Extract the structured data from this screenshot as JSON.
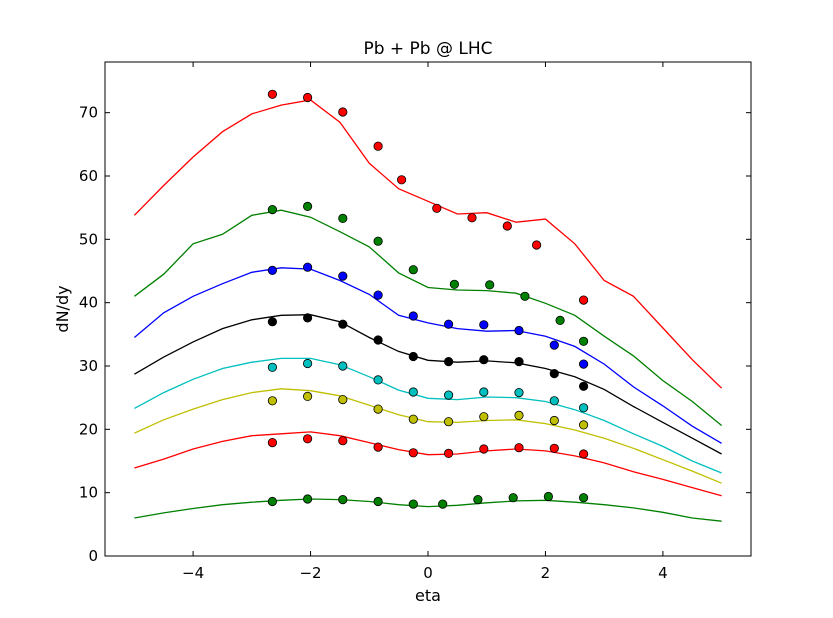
{
  "chart_data": {
    "type": "line",
    "title": "Pb + Pb @ LHC",
    "xlabel": "eta",
    "ylabel": "dN/dy",
    "xlim": [
      -5.5,
      5.5
    ],
    "ylim": [
      0,
      78
    ],
    "xticks": [
      -4,
      -2,
      0,
      2,
      4
    ],
    "xtick_labels": [
      "−4",
      "−2",
      "0",
      "2",
      "4"
    ],
    "yticks": [
      0,
      10,
      20,
      30,
      40,
      50,
      60,
      70
    ],
    "ytick_labels": [
      "0",
      "10",
      "20",
      "30",
      "40",
      "50",
      "60",
      "70"
    ],
    "grid": false,
    "legend": "none",
    "series": [
      {
        "color": "#ff0000",
        "line": {
          "x": [
            -5,
            -4.5,
            -4,
            -3.5,
            -3,
            -2.5,
            -2,
            -1.5,
            -1,
            -0.5,
            0,
            0.5,
            1,
            1.5,
            2,
            2.5,
            3,
            3.5,
            4,
            4.5,
            5
          ],
          "y": [
            53.8,
            58.5,
            63,
            67,
            69.8,
            71.2,
            72,
            68.5,
            62,
            58,
            56,
            54,
            54.2,
            52.7,
            53.2,
            49.3,
            43.5,
            41,
            36,
            31,
            26.5
          ]
        },
        "points": {
          "x": [
            -2.65,
            -2.05,
            -1.45,
            -0.85,
            -0.45,
            0.15,
            0.75,
            1.35,
            1.85,
            2.65
          ],
          "y": [
            72.9,
            72.4,
            70.1,
            64.7,
            59.4,
            54.9,
            53.4,
            52.1,
            49.1,
            40.4
          ]
        }
      },
      {
        "color": "#008000",
        "line": {
          "x": [
            -5,
            -4.5,
            -4,
            -3.5,
            -3,
            -2.5,
            -2,
            -1.5,
            -1,
            -0.5,
            0,
            0.5,
            1,
            1.5,
            2,
            2.5,
            3,
            3.5,
            4,
            4.5,
            5
          ],
          "y": [
            41,
            44.5,
            49.3,
            50.8,
            53.8,
            54.6,
            53.5,
            51.2,
            48.8,
            44.7,
            42.4,
            42,
            41.9,
            41.5,
            39.9,
            38,
            34.7,
            31.6,
            27.7,
            24.4,
            20.6
          ]
        },
        "points": {
          "x": [
            -2.65,
            -2.05,
            -1.45,
            -0.85,
            -0.25,
            0.45,
            1.05,
            1.65,
            2.25,
            2.65
          ],
          "y": [
            54.7,
            55.2,
            53.3,
            49.7,
            45.2,
            42.9,
            42.8,
            41,
            37.2,
            33.9
          ]
        }
      },
      {
        "color": "#0000ff",
        "line": {
          "x": [
            -5,
            -4.5,
            -4,
            -3.5,
            -3,
            -2.5,
            -2,
            -1.5,
            -1,
            -0.5,
            0,
            0.5,
            1,
            1.5,
            2,
            2.5,
            3,
            3.5,
            4,
            4.5,
            5
          ],
          "y": [
            34.5,
            38.4,
            41,
            43,
            44.8,
            45.5,
            45.3,
            43.5,
            41.3,
            38,
            36.8,
            35.9,
            35.5,
            35.6,
            34.7,
            33.1,
            30.3,
            26.7,
            23.7,
            20.5,
            17.8
          ]
        },
        "points": {
          "x": [
            -2.65,
            -2.05,
            -1.45,
            -0.85,
            -0.25,
            0.35,
            0.95,
            1.55,
            2.15,
            2.65
          ],
          "y": [
            45.1,
            45.6,
            44.2,
            41.2,
            37.9,
            36.6,
            36.5,
            35.6,
            33.3,
            30.3
          ]
        }
      },
      {
        "color": "#000000",
        "line": {
          "x": [
            -5,
            -4.5,
            -4,
            -3.5,
            -3,
            -2.5,
            -2,
            -1.5,
            -1,
            -0.5,
            0,
            0.5,
            1,
            1.5,
            2,
            2.5,
            3,
            3.5,
            4,
            4.5,
            5
          ],
          "y": [
            28.7,
            31.4,
            33.8,
            35.9,
            37.3,
            38,
            38.1,
            37,
            34.5,
            32.3,
            30.9,
            30.6,
            30.8,
            30.5,
            29.6,
            28.3,
            26.3,
            23.6,
            21.1,
            18.6,
            16.1
          ]
        },
        "points": {
          "x": [
            -2.65,
            -2.05,
            -1.45,
            -0.85,
            -0.25,
            0.35,
            0.95,
            1.55,
            2.15,
            2.65
          ],
          "y": [
            37,
            37.6,
            36.6,
            34.1,
            31.5,
            30.7,
            31,
            30.7,
            28.8,
            26.8
          ]
        }
      },
      {
        "color": "#00bfbf",
        "line": {
          "x": [
            -5,
            -4.5,
            -4,
            -3.5,
            -3,
            -2.5,
            -2,
            -1.5,
            -1,
            -0.5,
            0,
            0.5,
            1,
            1.5,
            2,
            2.5,
            3,
            3.5,
            4,
            4.5,
            5
          ],
          "y": [
            23.3,
            25.8,
            27.9,
            29.6,
            30.6,
            31.2,
            31.2,
            30.2,
            28.3,
            26.2,
            24.9,
            24.7,
            25.1,
            25,
            24.4,
            23.1,
            21.4,
            19.3,
            17.3,
            15,
            13.1
          ]
        },
        "points": {
          "x": [
            -2.65,
            -2.05,
            -1.45,
            -0.85,
            -0.25,
            0.35,
            0.95,
            1.55,
            2.15,
            2.65
          ],
          "y": [
            29.8,
            30.4,
            30,
            27.8,
            25.9,
            25.4,
            25.9,
            25.8,
            24.5,
            23.4
          ]
        }
      },
      {
        "color": "#bfbf00",
        "line": {
          "x": [
            -5,
            -4.5,
            -4,
            -3.5,
            -3,
            -2.5,
            -2,
            -1.5,
            -1,
            -0.5,
            0,
            0.5,
            1,
            1.5,
            2,
            2.5,
            3,
            3.5,
            4,
            4.5,
            5
          ],
          "y": [
            19.4,
            21.5,
            23.2,
            24.7,
            25.8,
            26.4,
            26.1,
            25.3,
            23.8,
            22.3,
            21.2,
            21.1,
            21.4,
            21.5,
            20.9,
            19.9,
            18.6,
            17,
            15.2,
            13.4,
            11.5
          ]
        },
        "points": {
          "x": [
            -2.65,
            -2.05,
            -1.45,
            -0.85,
            -0.25,
            0.35,
            0.95,
            1.55,
            2.15,
            2.65
          ],
          "y": [
            24.5,
            25.2,
            24.7,
            23.2,
            21.6,
            21.2,
            22,
            22.2,
            21.4,
            20.7
          ]
        }
      },
      {
        "color": "#ff0000",
        "line": {
          "x": [
            -5,
            -4.5,
            -4,
            -3.5,
            -3,
            -2.5,
            -2,
            -1.5,
            -1,
            -0.5,
            0,
            0.5,
            1,
            1.5,
            2,
            2.5,
            3,
            3.5,
            4,
            4.5,
            5
          ],
          "y": [
            13.9,
            15.3,
            16.9,
            18.1,
            19,
            19.3,
            19.6,
            19,
            17.9,
            16.8,
            16,
            16.1,
            16.6,
            16.9,
            16.6,
            15.8,
            14.7,
            13.3,
            12.1,
            10.8,
            9.5
          ]
        },
        "points": {
          "x": [
            -2.65,
            -2.05,
            -1.45,
            -0.85,
            -0.25,
            0.35,
            0.95,
            1.55,
            2.15,
            2.65
          ],
          "y": [
            17.9,
            18.5,
            18.2,
            17.2,
            16.3,
            16.2,
            16.9,
            17.1,
            17,
            16.1
          ]
        }
      },
      {
        "color": "#008000",
        "line": {
          "x": [
            -5,
            -4.5,
            -4,
            -3.5,
            -3,
            -2.5,
            -2,
            -1.5,
            -1,
            -0.5,
            0,
            0.5,
            1,
            1.5,
            2,
            2.5,
            3,
            3.5,
            4,
            4.5,
            5
          ],
          "y": [
            6,
            6.8,
            7.5,
            8.1,
            8.5,
            8.8,
            9,
            8.9,
            8.6,
            8.1,
            7.8,
            8,
            8.4,
            8.7,
            8.8,
            8.5,
            8.1,
            7.6,
            6.9,
            6,
            5.5
          ]
        },
        "points": {
          "x": [
            -2.65,
            -2.05,
            -1.45,
            -0.85,
            -0.25,
            0.25,
            0.85,
            1.45,
            2.05,
            2.65
          ],
          "y": [
            8.6,
            9,
            8.9,
            8.6,
            8.2,
            8.2,
            8.9,
            9.2,
            9.4,
            9.2
          ]
        }
      }
    ]
  }
}
